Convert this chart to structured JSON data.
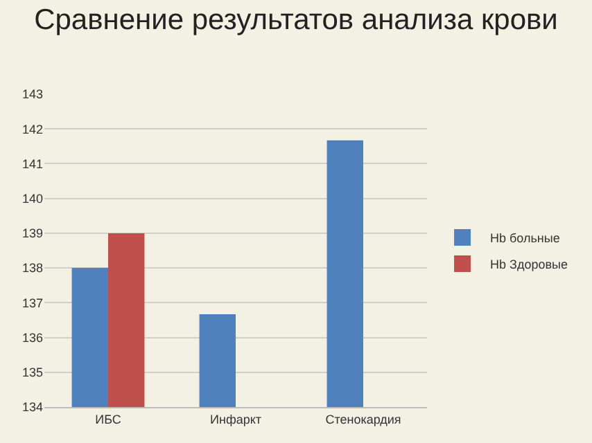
{
  "chart_data": {
    "type": "bar",
    "title": "Сравнение результатов анализа крови",
    "categories": [
      "ИБС",
      "Инфаркт",
      "Стенокардия"
    ],
    "series": [
      {
        "name": "Hb больные",
        "color": "#4f81bd",
        "values": [
          138,
          136.67,
          141.67
        ]
      },
      {
        "name": "Hb Здоровые",
        "color": "#c0504d",
        "values": [
          139,
          null,
          null
        ]
      }
    ],
    "ylim": [
      134,
      143
    ],
    "yticks": [
      134,
      135,
      136,
      137,
      138,
      139,
      140,
      141,
      142,
      143
    ],
    "grid": "y",
    "legend": "right"
  }
}
